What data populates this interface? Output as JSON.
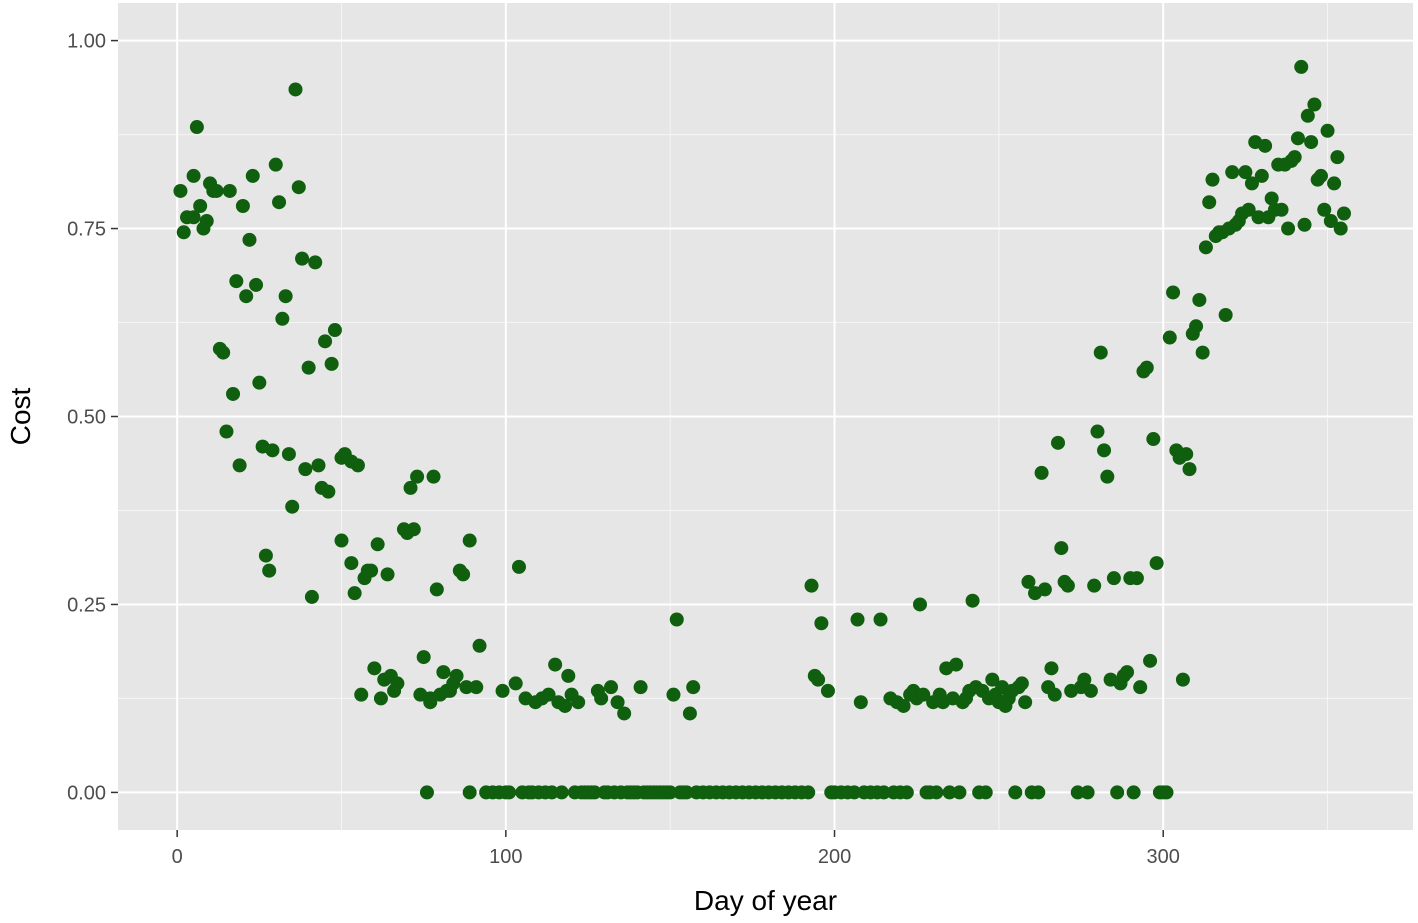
{
  "chart_data": {
    "type": "scatter",
    "xlabel": "Day of year",
    "ylabel": "Cost",
    "xlim": [
      -18,
      376
    ],
    "ylim": [
      -0.05,
      1.05
    ],
    "x_ticks": [
      0,
      100,
      200,
      300
    ],
    "x_tick_labels": [
      "0",
      "100",
      "200",
      "300"
    ],
    "y_ticks": [
      0,
      0.25,
      0.5,
      0.75,
      1.0
    ],
    "y_tick_labels": [
      "0.00",
      "0.25",
      "0.50",
      "0.75",
      "1.00"
    ],
    "grid": true,
    "colors": {
      "panel": "#e6e6e6",
      "grid_major": "#ffffff",
      "point": "#0f5f0f",
      "tick_text": "#4d4d4d"
    },
    "series": [
      {
        "points": [
          [
            1,
            0.8
          ],
          [
            2,
            0.745
          ],
          [
            3,
            0.765
          ],
          [
            5,
            0.82
          ],
          [
            5,
            0.765
          ],
          [
            6,
            0.885
          ],
          [
            7,
            0.78
          ],
          [
            8,
            0.75
          ],
          [
            9,
            0.76
          ],
          [
            10,
            0.81
          ],
          [
            11,
            0.8
          ],
          [
            12,
            0.8
          ],
          [
            13,
            0.59
          ],
          [
            14,
            0.585
          ],
          [
            15,
            0.48
          ],
          [
            16,
            0.8
          ],
          [
            17,
            0.53
          ],
          [
            18,
            0.68
          ],
          [
            19,
            0.435
          ],
          [
            20,
            0.78
          ],
          [
            21,
            0.66
          ],
          [
            22,
            0.735
          ],
          [
            23,
            0.82
          ],
          [
            24,
            0.675
          ],
          [
            25,
            0.545
          ],
          [
            26,
            0.46
          ],
          [
            27,
            0.315
          ],
          [
            28,
            0.295
          ],
          [
            29,
            0.455
          ],
          [
            30,
            0.835
          ],
          [
            31,
            0.785
          ],
          [
            32,
            0.63
          ],
          [
            33,
            0.66
          ],
          [
            34,
            0.45
          ],
          [
            35,
            0.38
          ],
          [
            36,
            0.935
          ],
          [
            37,
            0.805
          ],
          [
            38,
            0.71
          ],
          [
            39,
            0.43
          ],
          [
            40,
            0.565
          ],
          [
            41,
            0.26
          ],
          [
            42,
            0.705
          ],
          [
            43,
            0.435
          ],
          [
            44,
            0.405
          ],
          [
            45,
            0.6
          ],
          [
            46,
            0.4
          ],
          [
            47,
            0.57
          ],
          [
            48,
            0.615
          ],
          [
            50,
            0.335
          ],
          [
            50,
            0.445
          ],
          [
            51,
            0.45
          ],
          [
            53,
            0.44
          ],
          [
            53,
            0.305
          ],
          [
            54,
            0.265
          ],
          [
            55,
            0.435
          ],
          [
            56,
            0.13
          ],
          [
            57,
            0.285
          ],
          [
            58,
            0.295
          ],
          [
            59,
            0.295
          ],
          [
            60,
            0.165
          ],
          [
            61,
            0.33
          ],
          [
            62,
            0.125
          ],
          [
            63,
            0.15
          ],
          [
            64,
            0.29
          ],
          [
            65,
            0.155
          ],
          [
            66,
            0.135
          ],
          [
            67,
            0.145
          ],
          [
            69,
            0.35
          ],
          [
            70,
            0.345
          ],
          [
            71,
            0.405
          ],
          [
            72,
            0.35
          ],
          [
            73,
            0.42
          ],
          [
            74,
            0.13
          ],
          [
            75,
            0.18
          ],
          [
            76,
            0.0
          ],
          [
            77,
            0.12
          ],
          [
            77,
            0.125
          ],
          [
            78,
            0.42
          ],
          [
            79,
            0.27
          ],
          [
            80,
            0.13
          ],
          [
            81,
            0.16
          ],
          [
            82,
            0.135
          ],
          [
            83,
            0.135
          ],
          [
            84,
            0.145
          ],
          [
            85,
            0.155
          ],
          [
            86,
            0.295
          ],
          [
            87,
            0.29
          ],
          [
            88,
            0.14
          ],
          [
            89,
            0.335
          ],
          [
            89,
            0.0
          ],
          [
            91,
            0.14
          ],
          [
            92,
            0.195
          ],
          [
            94,
            0.0
          ],
          [
            96,
            0.0
          ],
          [
            98,
            0.0
          ],
          [
            99,
            0.135
          ],
          [
            100,
            0.0
          ],
          [
            101,
            0.0
          ],
          [
            103,
            0.145
          ],
          [
            104,
            0.3
          ],
          [
            105,
            0.0
          ],
          [
            106,
            0.125
          ],
          [
            107,
            0.0
          ],
          [
            108,
            0.0
          ],
          [
            109,
            0.12
          ],
          [
            110,
            0.0
          ],
          [
            111,
            0.125
          ],
          [
            112,
            0.0
          ],
          [
            113,
            0.13
          ],
          [
            114,
            0.0
          ],
          [
            115,
            0.17
          ],
          [
            116,
            0.12
          ],
          [
            117,
            0.0
          ],
          [
            118,
            0.115
          ],
          [
            119,
            0.155
          ],
          [
            120,
            0.13
          ],
          [
            121,
            0.0
          ],
          [
            122,
            0.12
          ],
          [
            123,
            0.0
          ],
          [
            124,
            0.0
          ],
          [
            125,
            0.0
          ],
          [
            126,
            0.0
          ],
          [
            127,
            0.0
          ],
          [
            128,
            0.135
          ],
          [
            129,
            0.125
          ],
          [
            130,
            0.0
          ],
          [
            131,
            0.0
          ],
          [
            132,
            0.14
          ],
          [
            133,
            0.0
          ],
          [
            134,
            0.12
          ],
          [
            135,
            0.0
          ],
          [
            136,
            0.105
          ],
          [
            137,
            0.0
          ],
          [
            138,
            0.0
          ],
          [
            139,
            0.0
          ],
          [
            140,
            0.0
          ],
          [
            141,
            0.14
          ],
          [
            142,
            0.0
          ],
          [
            143,
            0.0
          ],
          [
            144,
            0.0
          ],
          [
            145,
            0.0
          ],
          [
            146,
            0.0
          ],
          [
            147,
            0.0
          ],
          [
            148,
            0.0
          ],
          [
            149,
            0.0
          ],
          [
            150,
            0.0
          ],
          [
            151,
            0.13
          ],
          [
            152,
            0.23
          ],
          [
            153,
            0.0
          ],
          [
            154,
            0.0
          ],
          [
            155,
            0.0
          ],
          [
            156,
            0.105
          ],
          [
            157,
            0.14
          ],
          [
            158,
            0.0
          ],
          [
            160,
            0.0
          ],
          [
            162,
            0.0
          ],
          [
            164,
            0.0
          ],
          [
            166,
            0.0
          ],
          [
            168,
            0.0
          ],
          [
            170,
            0.0
          ],
          [
            172,
            0.0
          ],
          [
            174,
            0.0
          ],
          [
            176,
            0.0
          ],
          [
            178,
            0.0
          ],
          [
            180,
            0.0
          ],
          [
            182,
            0.0
          ],
          [
            184,
            0.0
          ],
          [
            186,
            0.0
          ],
          [
            188,
            0.0
          ],
          [
            190,
            0.0
          ],
          [
            192,
            0.0
          ],
          [
            193,
            0.275
          ],
          [
            194,
            0.155
          ],
          [
            195,
            0.15
          ],
          [
            196,
            0.225
          ],
          [
            198,
            0.135
          ],
          [
            199,
            0.0
          ],
          [
            200,
            0.0
          ],
          [
            202,
            0.0
          ],
          [
            204,
            0.0
          ],
          [
            206,
            0.0
          ],
          [
            207,
            0.23
          ],
          [
            208,
            0.12
          ],
          [
            209,
            0.0
          ],
          [
            211,
            0.0
          ],
          [
            213,
            0.0
          ],
          [
            214,
            0.23
          ],
          [
            215,
            0.0
          ],
          [
            217,
            0.125
          ],
          [
            218,
            0.0
          ],
          [
            219,
            0.12
          ],
          [
            220,
            0.0
          ],
          [
            221,
            0.115
          ],
          [
            222,
            0.0
          ],
          [
            223,
            0.13
          ],
          [
            224,
            0.135
          ],
          [
            225,
            0.125
          ],
          [
            226,
            0.25
          ],
          [
            227,
            0.13
          ],
          [
            228,
            0.0
          ],
          [
            229,
            0.0
          ],
          [
            230,
            0.12
          ],
          [
            231,
            0.0
          ],
          [
            232,
            0.13
          ],
          [
            233,
            0.12
          ],
          [
            234,
            0.165
          ],
          [
            235,
            0.0
          ],
          [
            236,
            0.125
          ],
          [
            237,
            0.17
          ],
          [
            238,
            0.0
          ],
          [
            239,
            0.12
          ],
          [
            240,
            0.125
          ],
          [
            241,
            0.135
          ],
          [
            242,
            0.255
          ],
          [
            243,
            0.14
          ],
          [
            244,
            0.0
          ],
          [
            245,
            0.135
          ],
          [
            246,
            0.0
          ],
          [
            247,
            0.125
          ],
          [
            248,
            0.15
          ],
          [
            249,
            0.13
          ],
          [
            250,
            0.12
          ],
          [
            251,
            0.14
          ],
          [
            252,
            0.115
          ],
          [
            253,
            0.125
          ],
          [
            254,
            0.135
          ],
          [
            255,
            0.0
          ],
          [
            256,
            0.14
          ],
          [
            257,
            0.145
          ],
          [
            258,
            0.12
          ],
          [
            259,
            0.28
          ],
          [
            260,
            0.0
          ],
          [
            261,
            0.265
          ],
          [
            262,
            0.0
          ],
          [
            263,
            0.425
          ],
          [
            264,
            0.27
          ],
          [
            265,
            0.14
          ],
          [
            266,
            0.165
          ],
          [
            267,
            0.13
          ],
          [
            268,
            0.465
          ],
          [
            269,
            0.325
          ],
          [
            270,
            0.28
          ],
          [
            271,
            0.275
          ],
          [
            272,
            0.135
          ],
          [
            274,
            0.0
          ],
          [
            275,
            0.14
          ],
          [
            276,
            0.15
          ],
          [
            277,
            0.0
          ],
          [
            278,
            0.135
          ],
          [
            279,
            0.275
          ],
          [
            280,
            0.48
          ],
          [
            281,
            0.585
          ],
          [
            282,
            0.455
          ],
          [
            283,
            0.42
          ],
          [
            284,
            0.15
          ],
          [
            285,
            0.285
          ],
          [
            286,
            0.0
          ],
          [
            287,
            0.145
          ],
          [
            288,
            0.155
          ],
          [
            289,
            0.16
          ],
          [
            290,
            0.285
          ],
          [
            291,
            0.0
          ],
          [
            292,
            0.285
          ],
          [
            293,
            0.14
          ],
          [
            294,
            0.56
          ],
          [
            295,
            0.565
          ],
          [
            296,
            0.175
          ],
          [
            297,
            0.47
          ],
          [
            298,
            0.305
          ],
          [
            299,
            0.0
          ],
          [
            300,
            0.0
          ],
          [
            301,
            0.0
          ],
          [
            302,
            0.605
          ],
          [
            303,
            0.665
          ],
          [
            304,
            0.455
          ],
          [
            305,
            0.445
          ],
          [
            306,
            0.15
          ],
          [
            307,
            0.45
          ],
          [
            308,
            0.43
          ],
          [
            309,
            0.61
          ],
          [
            310,
            0.62
          ],
          [
            311,
            0.655
          ],
          [
            312,
            0.585
          ],
          [
            313,
            0.725
          ],
          [
            314,
            0.785
          ],
          [
            315,
            0.815
          ],
          [
            316,
            0.74
          ],
          [
            317,
            0.745
          ],
          [
            318,
            0.745
          ],
          [
            319,
            0.635
          ],
          [
            320,
            0.75
          ],
          [
            321,
            0.825
          ],
          [
            322,
            0.755
          ],
          [
            323,
            0.76
          ],
          [
            324,
            0.77
          ],
          [
            325,
            0.825
          ],
          [
            326,
            0.775
          ],
          [
            327,
            0.81
          ],
          [
            328,
            0.865
          ],
          [
            329,
            0.765
          ],
          [
            330,
            0.82
          ],
          [
            331,
            0.86
          ],
          [
            332,
            0.765
          ],
          [
            333,
            0.79
          ],
          [
            334,
            0.775
          ],
          [
            335,
            0.835
          ],
          [
            336,
            0.775
          ],
          [
            337,
            0.835
          ],
          [
            338,
            0.75
          ],
          [
            339,
            0.84
          ],
          [
            340,
            0.845
          ],
          [
            341,
            0.87
          ],
          [
            342,
            0.965
          ],
          [
            343,
            0.755
          ],
          [
            344,
            0.9
          ],
          [
            345,
            0.865
          ],
          [
            346,
            0.915
          ],
          [
            347,
            0.815
          ],
          [
            348,
            0.82
          ],
          [
            349,
            0.775
          ],
          [
            350,
            0.88
          ],
          [
            351,
            0.76
          ],
          [
            352,
            0.81
          ],
          [
            353,
            0.845
          ],
          [
            354,
            0.75
          ],
          [
            355,
            0.77
          ]
        ]
      }
    ]
  }
}
